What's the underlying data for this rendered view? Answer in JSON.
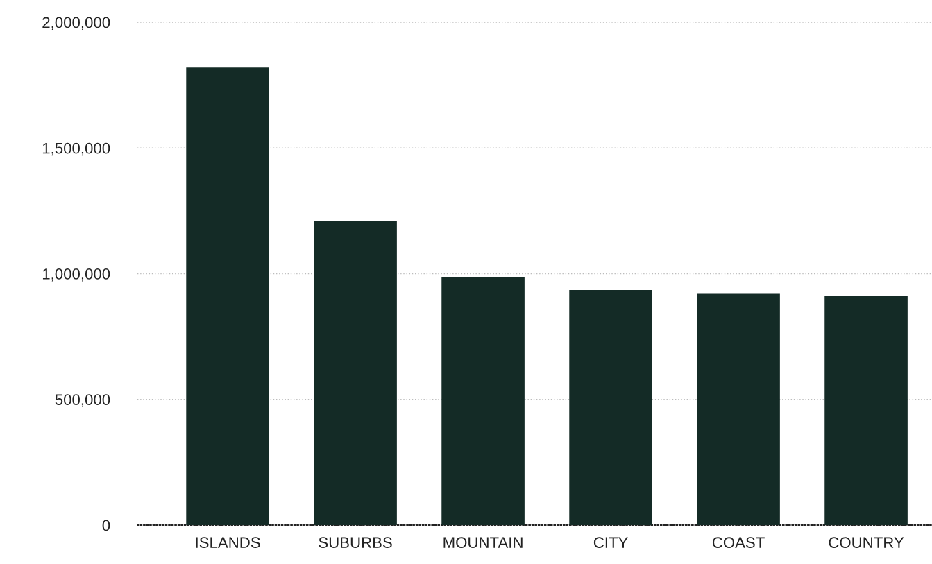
{
  "chart_data": {
    "type": "bar",
    "categories": [
      "ISLANDS",
      "SUBURBS",
      "MOUNTAIN",
      "CITY",
      "COAST",
      "COUNTRY"
    ],
    "values": [
      1820000,
      1210000,
      985000,
      935000,
      920000,
      910000
    ],
    "color": "#142b26",
    "ylim": [
      0,
      2000000
    ],
    "yticks": [
      {
        "value": 0,
        "label": "0"
      },
      {
        "value": 500000,
        "label": "500,000"
      },
      {
        "value": 1000000,
        "label": "1,000,000"
      },
      {
        "value": 1500000,
        "label": "1,500,000"
      },
      {
        "value": 2000000,
        "label": "2,000,000"
      }
    ],
    "grid": "y"
  }
}
